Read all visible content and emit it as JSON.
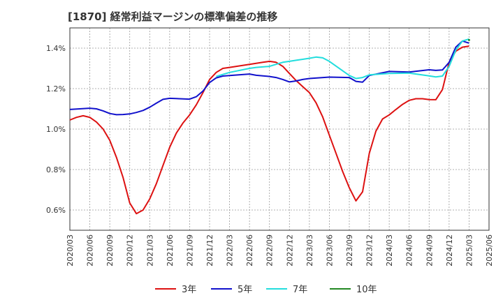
{
  "chart_data": {
    "type": "line",
    "title": "[1870]  経常利益マージンの標準偏差の推移",
    "xlabel": "",
    "ylabel": "",
    "ylim": [
      0.5,
      1.5
    ],
    "y_ticks": [
      0.6,
      0.8,
      1.0,
      1.2,
      1.4
    ],
    "y_tick_labels": [
      "0.6%",
      "0.8%",
      "1.0%",
      "1.2%",
      "1.4%"
    ],
    "x_tick_labels": [
      "2020/03",
      "2020/06",
      "2020/09",
      "2020/12",
      "2021/03",
      "2021/06",
      "2021/09",
      "2021/12",
      "2022/03",
      "2022/06",
      "2022/09",
      "2022/12",
      "2023/03",
      "2023/06",
      "2023/09",
      "2023/12",
      "2024/03",
      "2024/06",
      "2024/09",
      "2024/12",
      "2025/03",
      "2025/06"
    ],
    "grid": true,
    "legend_position": "bottom",
    "series": [
      {
        "name": "3年",
        "color": "#dd1111",
        "x": [
          "2020/03",
          "2020/04",
          "2020/05",
          "2020/06",
          "2020/07",
          "2020/08",
          "2020/09",
          "2020/10",
          "2020/11",
          "2020/12",
          "2021/01",
          "2021/02",
          "2021/03",
          "2021/04",
          "2021/05",
          "2021/06",
          "2021/07",
          "2021/08",
          "2021/09",
          "2021/10",
          "2021/11",
          "2021/12",
          "2022/01",
          "2022/02",
          "2022/03",
          "2022/06",
          "2022/08",
          "2022/09",
          "2022/10",
          "2022/11",
          "2022/12",
          "2023/01",
          "2023/02",
          "2023/03",
          "2023/04",
          "2023/05",
          "2023/06",
          "2023/07",
          "2023/08",
          "2023/09",
          "2023/10",
          "2023/11",
          "2023/12",
          "2024/01",
          "2024/02",
          "2024/03",
          "2024/04",
          "2024/05",
          "2024/06",
          "2024/07",
          "2024/08",
          "2024/09",
          "2024/10",
          "2024/11",
          "2024/12",
          "2025/01",
          "2025/02",
          "2025/03"
        ],
        "values": [
          1.045,
          1.058,
          1.066,
          1.058,
          1.035,
          1.0,
          0.945,
          0.86,
          0.76,
          0.635,
          0.582,
          0.6,
          0.655,
          0.73,
          0.82,
          0.91,
          0.98,
          1.03,
          1.07,
          1.12,
          1.18,
          1.245,
          1.28,
          1.3,
          1.305,
          1.32,
          1.33,
          1.335,
          1.33,
          1.31,
          1.275,
          1.24,
          1.21,
          1.18,
          1.13,
          1.06,
          0.97,
          0.88,
          0.79,
          0.71,
          0.645,
          0.69,
          0.88,
          0.99,
          1.05,
          1.07,
          1.097,
          1.122,
          1.142,
          1.15,
          1.15,
          1.146,
          1.145,
          1.195,
          1.33,
          1.385,
          1.405,
          1.41
        ]
      },
      {
        "name": "5年",
        "color": "#1111cc",
        "x": [
          "2020/03",
          "2020/06",
          "2020/07",
          "2020/08",
          "2020/09",
          "2020/10",
          "2020/11",
          "2020/12",
          "2021/01",
          "2021/02",
          "2021/03",
          "2021/04",
          "2021/05",
          "2021/06",
          "2021/09",
          "2021/10",
          "2021/11",
          "2021/12",
          "2022/01",
          "2022/02",
          "2022/03",
          "2022/06",
          "2022/07",
          "2022/09",
          "2022/10",
          "2022/11",
          "2022/12",
          "2023/01",
          "2023/02",
          "2023/03",
          "2023/06",
          "2023/09",
          "2023/10",
          "2023/11",
          "2023/12",
          "2024/03",
          "2024/06",
          "2024/09",
          "2024/10",
          "2024/11",
          "2024/12",
          "2025/01",
          "2025/02",
          "2025/03"
        ],
        "values": [
          1.097,
          1.103,
          1.1,
          1.09,
          1.077,
          1.071,
          1.072,
          1.075,
          1.082,
          1.092,
          1.108,
          1.128,
          1.147,
          1.152,
          1.148,
          1.16,
          1.188,
          1.23,
          1.253,
          1.262,
          1.265,
          1.272,
          1.266,
          1.26,
          1.255,
          1.245,
          1.233,
          1.238,
          1.245,
          1.25,
          1.257,
          1.255,
          1.236,
          1.232,
          1.265,
          1.285,
          1.282,
          1.293,
          1.29,
          1.292,
          1.33,
          1.405,
          1.435,
          1.425
        ]
      },
      {
        "name": "7年",
        "color": "#22dddd",
        "x": [
          "2022/01",
          "2022/02",
          "2022/03",
          "2022/06",
          "2022/07",
          "2022/09",
          "2022/10",
          "2022/11",
          "2022/12",
          "2023/01",
          "2023/02",
          "2023/03",
          "2023/04",
          "2023/05",
          "2023/06",
          "2023/09",
          "2023/10",
          "2023/11",
          "2023/12",
          "2024/03",
          "2024/06",
          "2024/09",
          "2024/10",
          "2024/11",
          "2024/12",
          "2025/01",
          "2025/02",
          "2025/03"
        ],
        "values": [
          1.26,
          1.27,
          1.28,
          1.3,
          1.305,
          1.31,
          1.32,
          1.33,
          1.335,
          1.34,
          1.345,
          1.35,
          1.356,
          1.352,
          1.335,
          1.265,
          1.25,
          1.255,
          1.268,
          1.275,
          1.277,
          1.263,
          1.258,
          1.262,
          1.31,
          1.39,
          1.435,
          1.445
        ]
      },
      {
        "name": "10年",
        "color": "#228822",
        "x": [
          "2025/03"
        ],
        "values": [
          1.44
        ]
      }
    ]
  }
}
